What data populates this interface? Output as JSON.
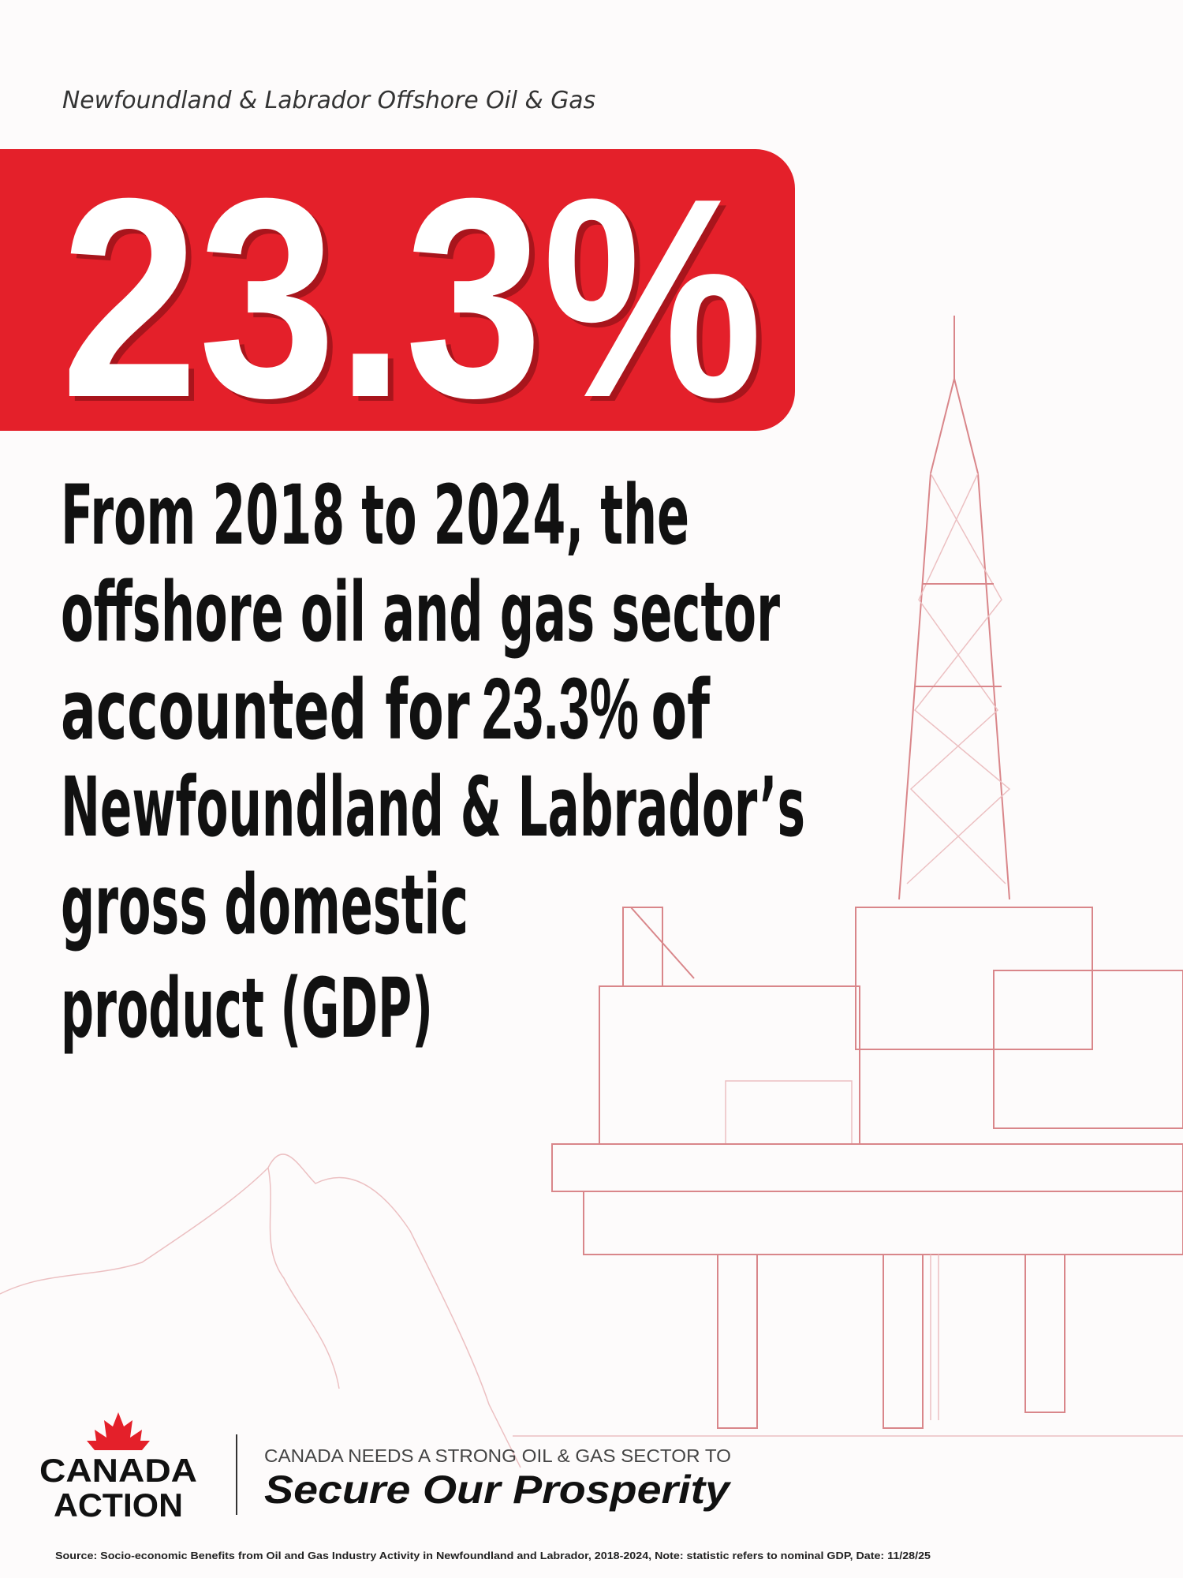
{
  "header": {
    "subtitle": "Newfoundland & Labrador Offshore Oil & Gas"
  },
  "headline": {
    "stat": "23.3%"
  },
  "body": {
    "lines": [
      "From 2018 to 2024, the",
      "offshore oil and gas sector",
      {
        "before": "accounted for",
        "highlight": "23.3%",
        "after": "of"
      },
      "Newfoundland & Labrador’s",
      "gross domestic",
      "product (GDP)"
    ]
  },
  "logo": {
    "line_1": "CANADA",
    "line_2": "ACTION"
  },
  "tagline": {
    "top": "CANADA NEEDS A STRONG OIL & GAS SECTOR TO",
    "main": "Secure Our Prosperity"
  },
  "footer": {
    "source": "Source: Socio-economic Benefits from Oil and Gas Industry Activity in Newfoundland and Labrador, 2018-2024, Note: statistic refers to nominal GDP, Date: 11/28/25"
  }
}
